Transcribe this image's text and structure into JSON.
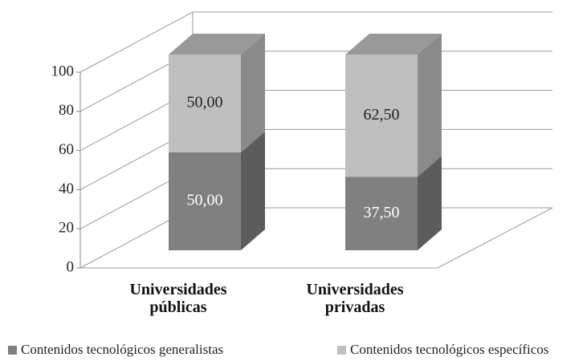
{
  "chart_data": {
    "type": "bar3d_stacked",
    "categories": [
      "Universidades públicas",
      "Universidades privadas"
    ],
    "series": [
      {
        "name": "Contenidos tecnológicos generalistas",
        "color": "#808080",
        "values": [
          50,
          37.5
        ],
        "value_labels": [
          "50,00",
          "37,50"
        ]
      },
      {
        "name": "Contenidos tecnológicos específicos",
        "color": "#bfbfbf",
        "values": [
          50,
          62.5
        ],
        "value_labels": [
          "50,00",
          "62,50"
        ]
      }
    ],
    "ylim": [
      0,
      100
    ],
    "yticks": [
      0,
      20,
      40,
      60,
      80,
      100
    ],
    "grid": true,
    "legend": "bottom"
  }
}
